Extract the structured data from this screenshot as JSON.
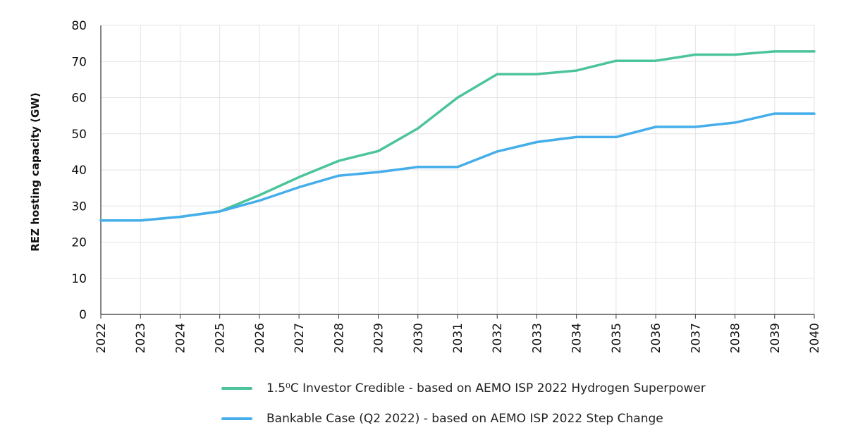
{
  "chart_data": {
    "type": "line",
    "title": "",
    "xlabel": "",
    "ylabel": "REZ hosting capacity (GW)",
    "ylim": [
      0,
      80
    ],
    "yticks": [
      "0",
      "10",
      "20",
      "30",
      "40",
      "50",
      "60",
      "70",
      "80"
    ],
    "categories": [
      "2022",
      "2023",
      "2024",
      "2025",
      "2026",
      "2027",
      "2028",
      "2029",
      "2030",
      "2031",
      "2032",
      "2033",
      "2034",
      "2035",
      "2036",
      "2037",
      "2038",
      "2039",
      "2040"
    ],
    "grid": true,
    "legend_position": "bottom",
    "series": [
      {
        "name": "1.5⁰C Investor Credible - based on AEMO ISP 2022 Hydrogen Superpower",
        "color": "#4cc49a",
        "values": [
          26,
          26,
          27,
          28.5,
          33,
          38,
          42.5,
          45.2,
          51.5,
          60,
          66.5,
          66.5,
          67.5,
          70.2,
          70.2,
          71.9,
          71.9,
          72.8,
          72.8
        ]
      },
      {
        "name": "Bankable Case (Q2 2022) - based on AEMO ISP 2022 Step Change",
        "color": "#45aeea",
        "values": [
          26,
          26,
          27,
          28.5,
          31.5,
          35.2,
          38.4,
          39.4,
          40.8,
          40.8,
          45.1,
          47.7,
          49.1,
          49.1,
          51.9,
          51.9,
          53.1,
          55.6,
          55.6
        ]
      }
    ]
  }
}
